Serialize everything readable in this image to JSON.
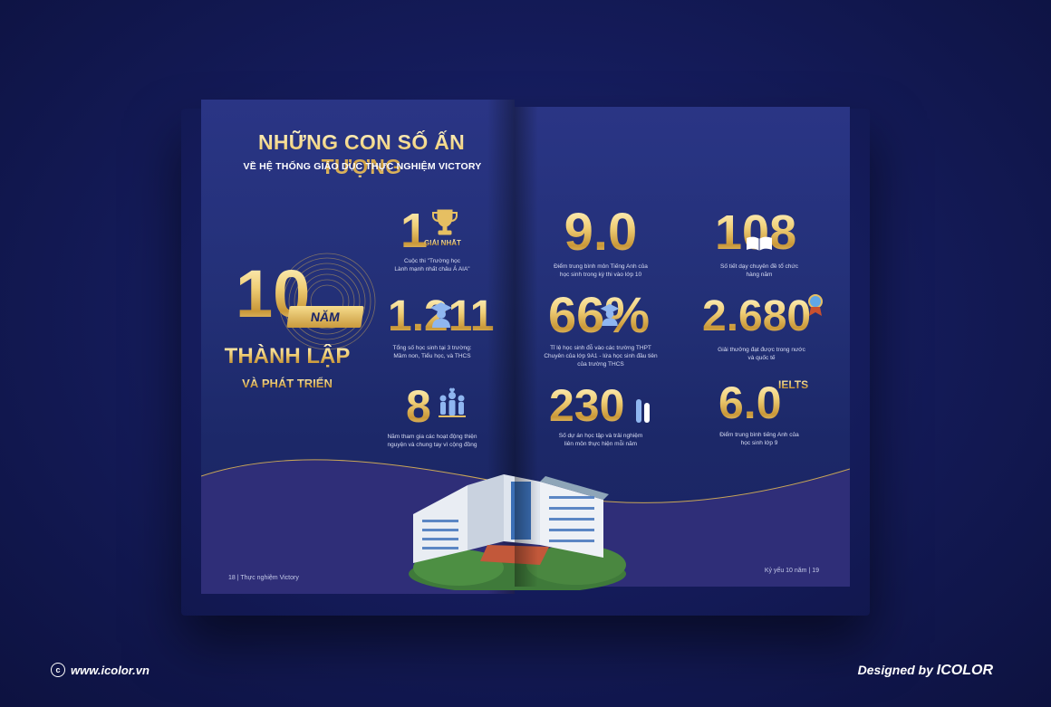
{
  "left_page": {
    "title": "NHỮNG CON SỐ ẤN TƯỢNG",
    "subtitle": "VỀ HỆ THỐNG GIÁO DỤC THỰC NGHIỆM VICTORY",
    "anniversary": {
      "number": "10",
      "ribbon": "NĂM",
      "line1": "THÀNH LẬP",
      "line2": "VÀ PHÁT TRIỂN"
    },
    "stats": [
      {
        "value": "1",
        "badge": "GIẢI NHẤT",
        "desc_line1": "Cuộc thi \"Trường học",
        "desc_line2": "Lành mạnh nhất châu Á AIA\"",
        "icon": "trophy-icon"
      },
      {
        "value": "1.211",
        "desc_line1": "Tổng số học sinh tại 3 trường:",
        "desc_line2": "Mầm non, Tiểu học, và THCS",
        "icon": "graduate-icon"
      },
      {
        "value": "8",
        "desc_line1": "Năm tham gia các hoạt động thiện",
        "desc_line2": "nguyện và chung tay vì cộng đồng",
        "icon": "community-icon"
      }
    ],
    "folio": "18 | Thực nghiệm Victory"
  },
  "right_page": {
    "stats": [
      {
        "value": "9.0",
        "desc_line1": "Điểm trung bình môn Tiếng Anh của",
        "desc_line2": "học sinh trong kỳ thi vào lớp 10",
        "desc_line3": ""
      },
      {
        "value": "108",
        "desc_line1": "Số tiết dạy chuyên đề tổ chức",
        "desc_line2": "hàng năm",
        "desc_line3": "",
        "icon": "book-icon"
      },
      {
        "value": "66%",
        "desc_line1": "Tỉ lệ học sinh đỗ vào các trường THPT",
        "desc_line2": "Chuyên của lớp 9A1 - lứa học sinh đầu tiên",
        "desc_line3": "của trường THCS",
        "icon": "graduate-icon"
      },
      {
        "value": "2.680",
        "desc_line1": "Giải thưởng đạt được trong nước",
        "desc_line2": "và quốc tế",
        "desc_line3": "",
        "icon": "medal-icon"
      },
      {
        "value": "230",
        "desc_line1": "Số dự án học tập và trải nghiệm",
        "desc_line2": "liên môn thực hiện mỗi năm",
        "desc_line3": "",
        "icon": "tubes-icon"
      },
      {
        "value": "6.0",
        "badge": "IELTS",
        "desc_line1": "Điểm trung bình tiếng Anh của",
        "desc_line2": "học sinh lớp 9",
        "desc_line3": ""
      }
    ],
    "folio": "Kỷ yếu 10 năm | 19"
  },
  "footer": {
    "website": "www.icolor.vn",
    "designed_by": "Designed by",
    "brand": "ICOLOR"
  },
  "colors": {
    "background": "#151c5c",
    "page": "#233077",
    "gold": "#e6bf62",
    "text_light": "#d9def5"
  }
}
